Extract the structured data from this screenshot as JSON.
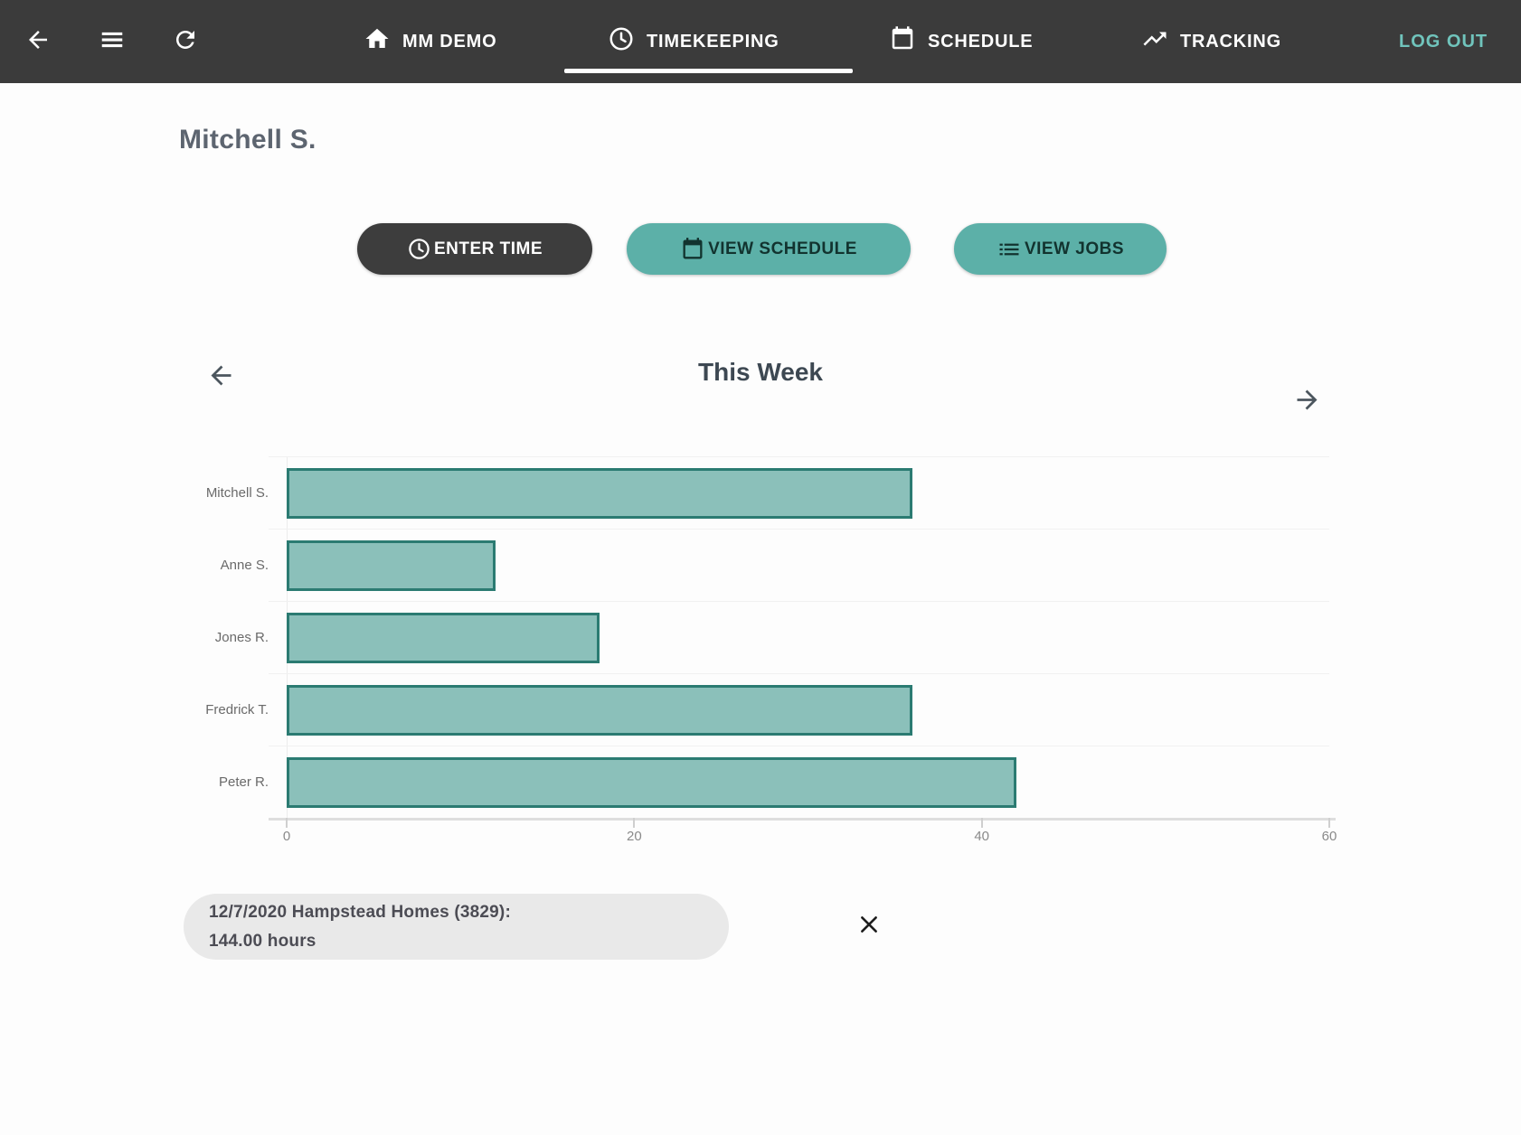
{
  "nav": {
    "back_icon": "back-arrow",
    "menu_icon": "hamburger-menu",
    "refresh_icon": "refresh",
    "items": [
      {
        "label": "MM DEMO",
        "icon": "home-icon",
        "active": false
      },
      {
        "label": "TIMEKEEPING",
        "icon": "clock-icon",
        "active": true
      },
      {
        "label": "SCHEDULE",
        "icon": "calendar-icon",
        "active": false
      },
      {
        "label": "TRACKING",
        "icon": "trending-icon",
        "active": false
      }
    ],
    "logout_label": "LOG OUT",
    "colors": {
      "bar_bg": "#3b3b3b",
      "text": "#ffffff",
      "logout_text": "#70c4bc",
      "active_underline": "#ffffff"
    }
  },
  "page": {
    "title": "Mitchell S."
  },
  "actions": [
    {
      "label": "ENTER TIME",
      "icon": "clock-icon",
      "style": "dark",
      "bg": "#3d3d3d",
      "text_color": "#ffffff"
    },
    {
      "label": "VIEW SCHEDULE",
      "icon": "calendar-icon",
      "style": "teal",
      "bg": "#5cb0a8",
      "text_color": "#12332f"
    },
    {
      "label": "VIEW JOBS",
      "icon": "list-icon",
      "style": "teal",
      "bg": "#5cb0a8",
      "text_color": "#12332f"
    }
  ],
  "week_nav": {
    "title": "This Week",
    "prev_icon": "arrow-left",
    "next_icon": "arrow-right"
  },
  "chart_data": {
    "type": "bar",
    "orientation": "horizontal",
    "title": "This Week",
    "categories": [
      "Mitchell S.",
      "Anne S.",
      "Jones R.",
      "Fredrick T.",
      "Peter R."
    ],
    "values": [
      36,
      12,
      18,
      36,
      42
    ],
    "xlabel": "",
    "ylabel": "",
    "xlim": [
      0,
      60
    ],
    "x_ticks": [
      0,
      20,
      40,
      60
    ],
    "grid": true,
    "legend": false,
    "bar_fill_color": "#8bc0ba",
    "bar_border_color": "#2b7b72"
  },
  "snackbar": {
    "line1": "12/7/2020 Hampstead Homes (3829):",
    "line2": "144.00 hours",
    "close_icon": "close-x",
    "bg": "#e9e9e9"
  }
}
